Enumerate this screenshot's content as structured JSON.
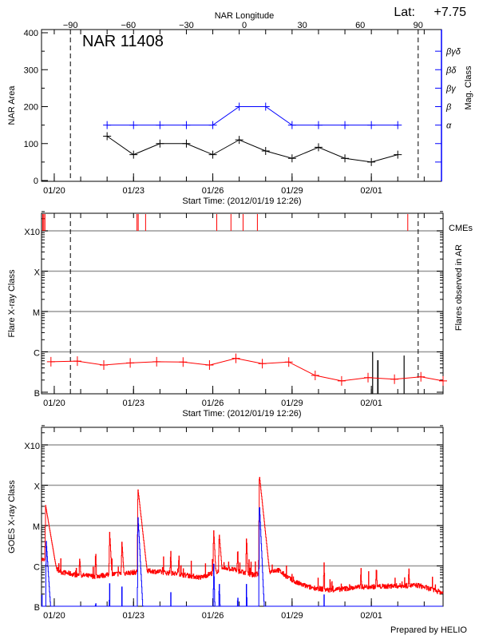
{
  "footer": "Prepared by HELIO",
  "colors": {
    "axis": "#000000",
    "mag_class": "#0000ff",
    "flare": "#ff0000",
    "cme": "#ff0000",
    "goes_long": "#ff0000",
    "goes_short": "#0000ff",
    "grid": "#999999"
  },
  "chart_data": [
    {
      "type": "line",
      "title": "NAR 11408",
      "lat_label": "Lat:",
      "lat_value": "+7.75",
      "top_axis_label": "NAR Longitude",
      "top_ticks": [
        -90,
        -60,
        -30,
        0,
        30,
        60,
        90
      ],
      "limb_markers_longitude": [
        -90,
        90
      ],
      "xlabel": "Start Time: (2012/01/19 12:26)",
      "ylabel": "NAR Area",
      "y2label": "Mag. Class",
      "ylim": [
        0,
        400
      ],
      "yticks": [
        0,
        100,
        200,
        300,
        400
      ],
      "xlim": [
        "2012-01-19T12:26",
        "2012-02-03T17:30"
      ],
      "xticks": [
        {
          "label": "01/20",
          "t": "2012-01-20T00:00"
        },
        {
          "label": "01/23",
          "t": "2012-01-23T00:00"
        },
        {
          "label": "01/26",
          "t": "2012-01-26T00:00"
        },
        {
          "label": "01/29",
          "t": "2012-01-29T00:00"
        },
        {
          "label": "02/01",
          "t": "2012-02-01T00:00"
        }
      ],
      "mag_class_ticks": [
        {
          "label": "",
          "level": 50
        },
        {
          "label": "",
          "level": 100
        },
        {
          "label": "α",
          "level": 150
        },
        {
          "label": "β",
          "level": 200
        },
        {
          "label": "βγ",
          "level": 250
        },
        {
          "label": "βδ",
          "level": 300
        },
        {
          "label": "βγδ",
          "level": 350
        }
      ],
      "x": [
        "2012-01-22",
        "2012-01-23",
        "2012-01-24",
        "2012-01-25",
        "2012-01-26",
        "2012-01-27",
        "2012-01-28",
        "2012-01-29",
        "2012-01-30",
        "2012-01-31",
        "2012-02-01",
        "2012-02-02"
      ],
      "area": [
        120,
        70,
        100,
        100,
        70,
        110,
        80,
        60,
        90,
        60,
        50,
        70
      ],
      "mag_class": [
        "α",
        "α",
        "α",
        "α",
        "α",
        "β",
        "β",
        "α",
        "α",
        "α",
        "α",
        "α"
      ]
    },
    {
      "type": "line",
      "xlabel": "Start Time: (2012/01/19 12:26)",
      "ylabel": "Flare X-ray Class",
      "y2label": "Flares observed in AR",
      "cme_label": "CMEs",
      "yscale": "log",
      "ylim": [
        1e-07,
        0.003
      ],
      "yticks": [
        {
          "label": "B",
          "v": 1e-07
        },
        {
          "label": "C",
          "v": 1e-06
        },
        {
          "label": "M",
          "v": 1e-05
        },
        {
          "label": "X",
          "v": 0.0001
        },
        {
          "label": "X10",
          "v": 0.001
        }
      ],
      "grid": true,
      "flare_class_series": {
        "x": [
          "2012-01-19T21:00",
          "2012-01-20T21:00",
          "2012-01-21T21:00",
          "2012-01-22T21:00",
          "2012-01-23T21:00",
          "2012-01-24T21:00",
          "2012-01-25T21:00",
          "2012-01-26T21:00",
          "2012-01-27T21:00",
          "2012-01-28T21:00",
          "2012-01-29T21:00",
          "2012-01-30T21:00",
          "2012-01-31T21:00",
          "2012-02-01T21:00",
          "2012-02-02T21:00",
          "2012-02-03T21:00"
        ],
        "y": [
          5.7e-07,
          5.9e-07,
          4.7e-07,
          5.3e-07,
          5.7e-07,
          5.6e-07,
          4.7e-07,
          6.9e-07,
          5.1e-07,
          5.6e-07,
          2.6e-07,
          1.9e-07,
          2.3e-07,
          2.1e-07,
          2.4e-07,
          1.9e-07
        ]
      },
      "ar_flares": [
        {
          "t": "2012-02-01T01:10",
          "v": 1e-06
        },
        {
          "t": "2012-02-01T05:45",
          "v": 6.2e-07
        },
        {
          "t": "2012-02-01T06:05",
          "v": 6.2e-07
        },
        {
          "t": "2012-02-02T05:45",
          "v": 8.1e-07
        }
      ],
      "cmes": [
        "2012-01-19T13:35",
        "2012-01-19T14:29",
        "2012-01-19T15:33",
        "2012-01-23T03:09",
        "2012-01-23T04:17",
        "2012-01-23T10:58",
        "2012-01-26T03:36",
        "2012-01-26T16:30",
        "2012-01-27T03:30",
        "2012-01-27T16:30",
        "2012-02-02T09:05"
      ],
      "limb_markers_longitude": [
        -90,
        90
      ]
    },
    {
      "type": "line",
      "ylabel": "GOES X-ray Class",
      "yscale": "log",
      "ylim": [
        1e-07,
        0.003
      ],
      "yticks": [
        {
          "label": "B",
          "v": 1e-07
        },
        {
          "label": "C",
          "v": 1e-06
        },
        {
          "label": "M",
          "v": 1e-05
        },
        {
          "label": "X",
          "v": 0.0001
        },
        {
          "label": "X10",
          "v": 0.001
        }
      ],
      "grid": true,
      "long_channel": {
        "baseline": [
          [
            "2012-01-19T12:26",
            1.5e-06
          ],
          [
            "2012-01-20T06:40",
            7e-07
          ],
          [
            "2012-01-20T20:00",
            6e-07
          ],
          [
            "2012-01-21T12:00",
            5.5e-07
          ],
          [
            "2012-01-22T12:00",
            6.5e-07
          ],
          [
            "2012-01-23T16:00",
            7.5e-07
          ],
          [
            "2012-01-24T12:00",
            6.5e-07
          ],
          [
            "2012-01-25T13:00",
            5.2e-07
          ],
          [
            "2012-01-26T12:00",
            9e-07
          ],
          [
            "2012-01-27T12:00",
            6e-07
          ],
          [
            "2012-01-28T11:00",
            8e-07
          ],
          [
            "2012-01-29T01:00",
            4.1e-07
          ],
          [
            "2012-01-29T15:00",
            3e-07
          ],
          [
            "2012-01-30T10:30",
            2.5e-07
          ],
          [
            "2012-01-31T14:30",
            3e-07
          ],
          [
            "2012-02-02T18:30",
            3.3e-07
          ],
          [
            "2012-02-03T18:10",
            2.1e-07
          ]
        ],
        "flares": [
          [
            "2012-01-19T16:00",
            3.2e-05,
            0.26
          ],
          [
            "2012-01-20T23:00",
            1.6e-06,
            0.1
          ],
          [
            "2012-01-21T13:30",
            2.5e-06,
            0.05
          ],
          [
            "2012-01-22T02:10",
            7.4e-06,
            0.08
          ],
          [
            "2012-01-22T13:20",
            3.9e-06,
            0.1
          ],
          [
            "2012-01-23T03:50",
            8.6e-05,
            0.17
          ],
          [
            "2012-01-24T09:40",
            2.6e-06,
            0.05
          ],
          [
            "2012-01-24T17:10",
            2e-06,
            0.05
          ],
          [
            "2012-01-26T00:40",
            8.1e-06,
            0.08
          ],
          [
            "2012-01-26T05:40",
            6.6e-06,
            0.12
          ],
          [
            "2012-01-26T22:30",
            2.9e-06,
            0.05
          ],
          [
            "2012-01-27T06:30",
            5.7e-06,
            0.05
          ],
          [
            "2012-01-27T18:10",
            0.000184,
            0.16
          ],
          [
            "2012-01-30T05:00",
            1.4e-06,
            0.03
          ],
          [
            "2012-01-31T14:30",
            9.4e-07,
            0.04
          ],
          [
            "2012-02-01T04:30",
            1e-06,
            0.05
          ],
          [
            "2012-02-02T10:00",
            9e-07,
            0.05
          ]
        ]
      },
      "short_channel": {
        "flares": [
          [
            "2012-01-19T12:40",
            2.6e-07,
            0.02
          ],
          [
            "2012-01-19T16:30",
            4.6e-06,
            0.1
          ],
          [
            "2012-01-21T13:30",
            2.2e-07,
            0.02
          ],
          [
            "2012-01-22T02:10",
            5e-07,
            0.02
          ],
          [
            "2012-01-22T13:20",
            3e-07,
            0.02
          ],
          [
            "2012-01-23T03:50",
            2e-05,
            0.08
          ],
          [
            "2012-01-24T09:40",
            3e-07,
            0.02
          ],
          [
            "2012-01-26T00:40",
            1.3e-06,
            0.04
          ],
          [
            "2012-01-26T05:40",
            4.8e-07,
            0.05
          ],
          [
            "2012-01-26T22:30",
            3e-07,
            0.02
          ],
          [
            "2012-01-27T06:30",
            5e-07,
            0.02
          ],
          [
            "2012-01-27T18:10",
            4e-05,
            0.07
          ],
          [
            "2012-01-30T05:00",
            2.6e-07,
            0.02
          ]
        ]
      }
    }
  ]
}
